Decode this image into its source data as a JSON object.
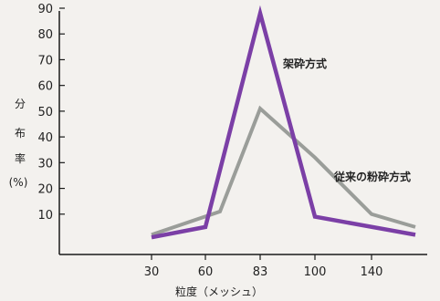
{
  "chart_data": {
    "type": "line",
    "title": "",
    "xlabel": "粒度（メッシュ）",
    "ylabel_chars": [
      "分",
      "布",
      "率",
      "(%)"
    ],
    "ylim": [
      0,
      95
    ],
    "yticks": [
      10,
      20,
      30,
      40,
      50,
      60,
      70,
      80,
      90
    ],
    "categories": [
      "30",
      "60",
      "83",
      "100",
      "140"
    ],
    "grid": false,
    "series": [
      {
        "name": "架砕方式",
        "color": "#7b3fa6",
        "points": [
          {
            "x": "30",
            "y": 1
          },
          {
            "x": "60",
            "y": 5
          },
          {
            "x": "83",
            "y": 88
          },
          {
            "x": "100",
            "y": 9
          },
          {
            "x": "~155",
            "y": 2
          }
        ]
      },
      {
        "name": "従来の粉砕方式",
        "color": "#9a9d99",
        "points": [
          {
            "x": "30",
            "y": 2
          },
          {
            "x": "~68",
            "y": 11
          },
          {
            "x": "83",
            "y": 51
          },
          {
            "x": "100",
            "y": 32
          },
          {
            "x": "140",
            "y": 10
          },
          {
            "x": "~155",
            "y": 5
          }
        ]
      }
    ]
  }
}
